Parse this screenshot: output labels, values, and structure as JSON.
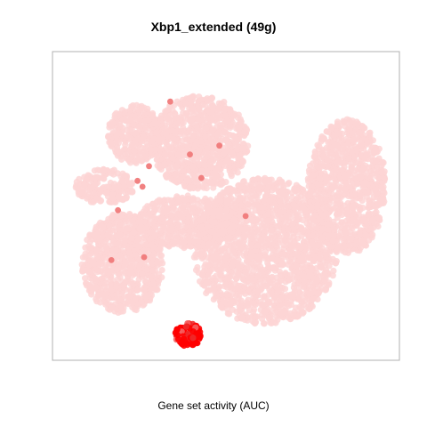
{
  "chart_data": {
    "type": "scatter",
    "title": "Xbp1_extended (49g)",
    "xlabel": "Gene set activity (AUC)",
    "ylabel": "",
    "point_colors": {
      "low": "#fdd5d5",
      "mid": "#f07a7a",
      "high": "#ff0000"
    },
    "clusters": [
      {
        "cx": 0.42,
        "cy": 0.72,
        "rx": 0.15,
        "ry": 0.16,
        "n": 900,
        "activity": "low"
      },
      {
        "cx": 0.22,
        "cy": 0.75,
        "rx": 0.08,
        "ry": 0.1,
        "n": 300,
        "activity": "low"
      },
      {
        "cx": 0.13,
        "cy": 0.57,
        "rx": 0.09,
        "ry": 0.06,
        "n": 200,
        "activity": "low"
      },
      {
        "cx": 0.185,
        "cy": 0.31,
        "rx": 0.125,
        "ry": 0.17,
        "n": 800,
        "activity": "low"
      },
      {
        "cx": 0.38,
        "cy": 0.45,
        "rx": 0.15,
        "ry": 0.09,
        "n": 500,
        "activity": "low"
      },
      {
        "cx": 0.62,
        "cy": 0.35,
        "rx": 0.22,
        "ry": 0.25,
        "n": 1700,
        "activity": "low"
      },
      {
        "cx": 0.87,
        "cy": 0.57,
        "rx": 0.12,
        "ry": 0.23,
        "n": 900,
        "activity": "low"
      },
      {
        "cx": 0.385,
        "cy": 0.065,
        "rx": 0.04,
        "ry": 0.04,
        "n": 110,
        "activity": "high"
      }
    ],
    "highlighted_points": [
      {
        "x": 0.33,
        "y": 0.86,
        "activity": "mid"
      },
      {
        "x": 0.23,
        "y": 0.59,
        "activity": "mid"
      },
      {
        "x": 0.245,
        "y": 0.57,
        "activity": "mid"
      },
      {
        "x": 0.17,
        "y": 0.49,
        "activity": "mid"
      },
      {
        "x": 0.48,
        "y": 0.71,
        "activity": "mid"
      },
      {
        "x": 0.39,
        "y": 0.68,
        "activity": "mid"
      },
      {
        "x": 0.15,
        "y": 0.32,
        "activity": "mid"
      },
      {
        "x": 0.25,
        "y": 0.33,
        "activity": "mid"
      },
      {
        "x": 0.56,
        "y": 0.47,
        "activity": "mid"
      },
      {
        "x": 0.265,
        "y": 0.64,
        "activity": "mid"
      },
      {
        "x": 0.425,
        "y": 0.6,
        "activity": "mid"
      }
    ]
  }
}
